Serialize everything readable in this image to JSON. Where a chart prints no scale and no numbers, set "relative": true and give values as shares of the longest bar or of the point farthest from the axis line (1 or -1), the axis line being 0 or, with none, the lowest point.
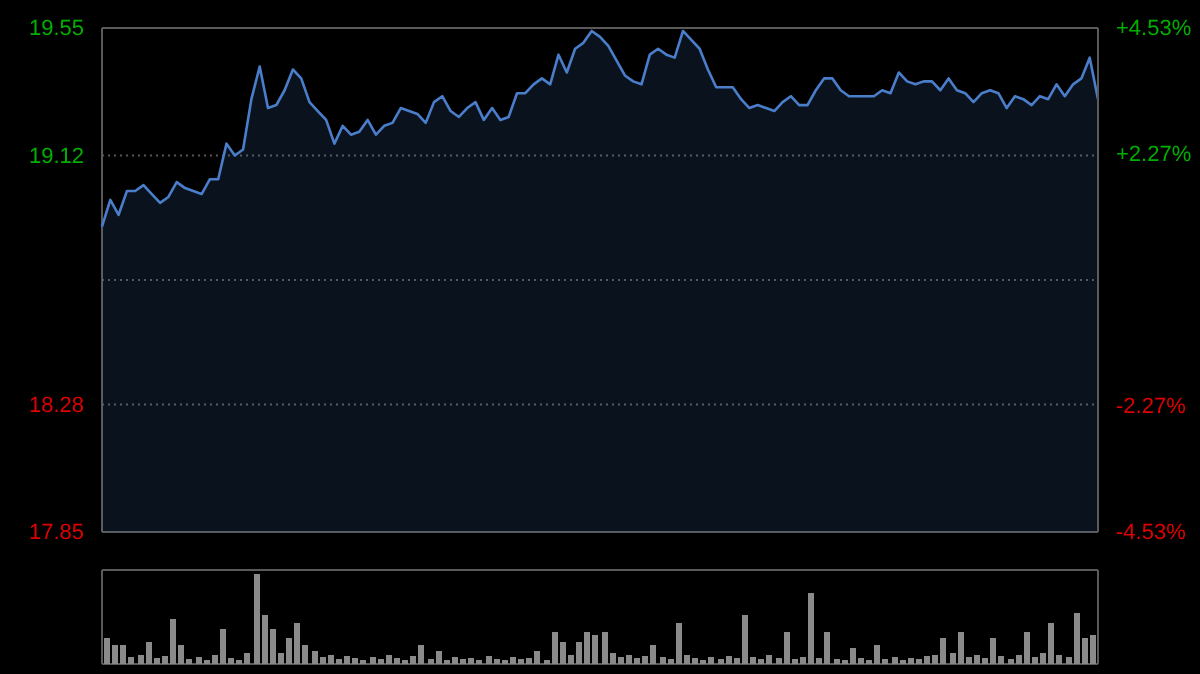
{
  "chart_data": [
    {
      "type": "area",
      "categories": [
        null,
        null,
        null,
        null,
        null,
        null,
        null,
        null,
        null,
        null,
        null,
        null,
        null,
        null,
        null,
        null,
        null,
        null,
        null,
        null,
        null,
        null,
        null,
        null,
        null,
        null,
        null,
        null,
        null,
        null,
        null,
        null,
        null,
        null,
        null,
        null,
        null,
        null,
        null,
        null,
        null,
        null,
        null,
        null,
        null,
        null,
        null,
        null,
        null,
        null,
        null,
        null,
        null,
        null,
        null,
        null,
        null,
        null,
        null,
        null,
        null,
        null,
        null,
        null,
        null,
        null,
        null,
        null,
        null,
        null,
        null,
        null,
        null,
        null,
        null,
        null,
        null,
        null,
        null,
        null,
        null,
        null,
        null,
        null,
        null,
        null,
        null,
        null,
        null,
        null,
        null,
        null,
        null,
        null,
        null,
        null,
        null,
        null,
        null,
        null,
        null,
        null,
        null,
        null,
        null,
        null,
        null,
        null,
        null,
        null,
        null,
        null,
        null,
        null,
        null,
        null,
        null,
        null,
        null,
        null,
        null
      ],
      "series": [
        {
          "color": "#4a7ecb",
          "values": [
            18.88,
            18.97,
            18.92,
            19.0,
            19.0,
            19.02,
            18.99,
            18.96,
            18.98,
            19.03,
            19.01,
            19.0,
            18.99,
            19.04,
            19.04,
            19.16,
            19.12,
            19.14,
            19.31,
            19.42,
            19.28,
            19.29,
            19.34,
            19.41,
            19.38,
            19.3,
            19.27,
            19.24,
            19.16,
            19.22,
            19.19,
            19.2,
            19.24,
            19.19,
            19.22,
            19.23,
            19.28,
            19.27,
            19.26,
            19.23,
            19.3,
            19.32,
            19.27,
            19.25,
            19.28,
            19.3,
            19.24,
            19.28,
            19.24,
            19.25,
            19.33,
            19.33,
            19.36,
            19.38,
            19.36,
            19.46,
            19.4,
            19.48,
            19.5,
            19.54,
            19.52,
            19.49,
            19.44,
            19.39,
            19.37,
            19.36,
            19.46,
            19.48,
            19.46,
            19.45,
            19.54,
            19.51,
            19.48,
            19.41,
            19.35,
            19.35,
            19.35,
            19.31,
            19.28,
            19.29,
            19.28,
            19.27,
            19.3,
            19.32,
            19.29,
            19.29,
            19.34,
            19.38,
            19.38,
            19.34,
            19.32,
            19.32,
            19.32,
            19.32,
            19.34,
            19.33,
            19.4,
            19.37,
            19.36,
            19.37,
            19.37,
            19.34,
            19.38,
            19.34,
            19.33,
            19.3,
            19.33,
            19.34,
            19.33,
            19.28,
            19.32,
            19.31,
            19.29,
            19.32,
            19.31,
            19.36,
            19.32,
            19.36,
            19.38,
            19.45,
            19.31
          ]
        }
      ],
      "ylim": [
        17.85,
        19.55
      ],
      "yticks": [
        17.85,
        18.28,
        {
          "value": 18.7,
          "label": null
        },
        19.12,
        19.55
      ],
      "y2lim": [
        -4.53,
        4.53
      ],
      "y2ticks": [
        {
          "value": -4.53,
          "label": "-4.53%"
        },
        {
          "value": -2.27,
          "label": "-2.27%"
        },
        {
          "value": 0,
          "label": null
        },
        {
          "value": 2.27,
          "label": "+2.27%"
        },
        {
          "value": 4.53,
          "label": "+4.53%"
        }
      ],
      "grid": "y",
      "tick_labels": "y"
    },
    {
      "type": "bar",
      "relative": true,
      "tick_labels": false,
      "categories": [
        null,
        null,
        null,
        null,
        null,
        null,
        null,
        null,
        null,
        null,
        null,
        null,
        null,
        null,
        null,
        null,
        null,
        null,
        null,
        null,
        null,
        null,
        null,
        null,
        null,
        null,
        null,
        null,
        null,
        null,
        null,
        null,
        null,
        null,
        null,
        null,
        null,
        null,
        null,
        null,
        null,
        null,
        null,
        null,
        null,
        null,
        null,
        null,
        null,
        null,
        null,
        null,
        null,
        null,
        null,
        null,
        null,
        null,
        null,
        null,
        null,
        null,
        null,
        null,
        null,
        null,
        null,
        null,
        null,
        null,
        null,
        null,
        null,
        null,
        null,
        null,
        null,
        null,
        null,
        null,
        null,
        null,
        null,
        null,
        null,
        null,
        null,
        null,
        null,
        null,
        null,
        null,
        null,
        null,
        null,
        null,
        null,
        null,
        null,
        null,
        null,
        null,
        null,
        null,
        null,
        null,
        null,
        null,
        null,
        null,
        null,
        null,
        null,
        null,
        null,
        null,
        null,
        null,
        null,
        null
      ],
      "values": [
        0.29,
        0.21,
        0.21,
        0.08,
        0.1,
        0.25,
        0.07,
        0.09,
        0.5,
        0.21,
        0.06,
        0.08,
        0.05,
        0.1,
        0.39,
        0.07,
        0.05,
        0.12,
        1.0,
        0.54,
        0.39,
        0.12,
        0.29,
        0.46,
        0.21,
        0.14,
        0.08,
        0.1,
        0.06,
        0.09,
        0.07,
        0.05,
        0.08,
        0.06,
        0.1,
        0.07,
        0.05,
        0.09,
        0.21,
        0.06,
        0.14,
        0.05,
        0.08,
        0.06,
        0.07,
        0.05,
        0.09,
        0.06,
        0.05,
        0.08,
        0.06,
        0.07,
        0.14,
        0.05,
        0.36,
        0.25,
        0.1,
        0.25,
        0.36,
        0.32,
        0.36,
        0.12,
        0.08,
        0.1,
        0.07,
        0.09,
        0.21,
        0.08,
        0.06,
        0.46,
        0.1,
        0.07,
        0.05,
        0.08,
        0.06,
        0.09,
        0.07,
        0.54,
        0.08,
        0.06,
        0.1,
        0.07,
        0.36,
        0.06,
        0.08,
        0.79,
        0.07,
        0.36,
        0.06,
        0.05,
        0.18,
        0.07,
        0.05,
        0.21,
        0.06,
        0.08,
        0.05,
        0.07,
        0.06,
        0.09,
        0.1,
        0.29,
        0.12,
        0.36,
        0.08,
        0.1,
        0.07,
        0.29,
        0.09,
        0.06,
        0.1,
        0.36,
        0.08,
        0.12,
        0.46,
        0.1,
        0.08,
        0.57,
        0.29,
        0.32
      ],
      "color": "#8a8a8a"
    }
  ]
}
